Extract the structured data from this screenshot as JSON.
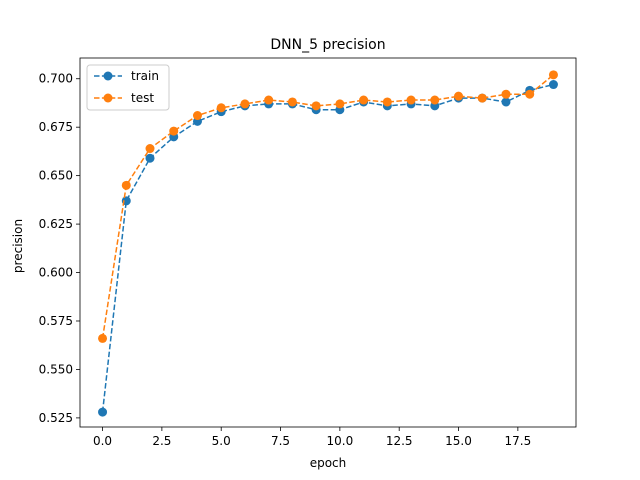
{
  "chart_data": {
    "type": "line",
    "title": "DNN_5 precision",
    "xlabel": "epoch",
    "ylabel": "precision",
    "xlim": [
      -0.95,
      19.95
    ],
    "ylim": [
      0.5203,
      0.7107
    ],
    "xticks": [
      0.0,
      2.5,
      5.0,
      7.5,
      10.0,
      12.5,
      15.0,
      17.5
    ],
    "xtick_labels": [
      "0.0",
      "2.5",
      "5.0",
      "7.5",
      "10.0",
      "12.5",
      "15.0",
      "17.5"
    ],
    "yticks": [
      0.525,
      0.55,
      0.575,
      0.6,
      0.625,
      0.65,
      0.675,
      0.7
    ],
    "ytick_labels": [
      "0.525",
      "0.550",
      "0.575",
      "0.600",
      "0.625",
      "0.650",
      "0.675",
      "0.700"
    ],
    "grid": false,
    "legend_position": "top-left",
    "x": [
      0,
      1,
      2,
      3,
      4,
      5,
      6,
      7,
      8,
      9,
      10,
      11,
      12,
      13,
      14,
      15,
      16,
      17,
      18,
      19
    ],
    "series": [
      {
        "name": "train",
        "color": "#1f77b4",
        "values": [
          0.528,
          0.637,
          0.659,
          0.67,
          0.678,
          0.683,
          0.686,
          0.687,
          0.687,
          0.684,
          0.684,
          0.688,
          0.686,
          0.687,
          0.686,
          0.69,
          0.69,
          0.688,
          0.694,
          0.697
        ]
      },
      {
        "name": "test",
        "color": "#ff7f0e",
        "values": [
          0.566,
          0.645,
          0.664,
          0.673,
          0.681,
          0.685,
          0.687,
          0.689,
          0.688,
          0.686,
          0.687,
          0.689,
          0.688,
          0.689,
          0.689,
          0.691,
          0.69,
          0.692,
          0.692,
          0.702
        ]
      }
    ]
  }
}
